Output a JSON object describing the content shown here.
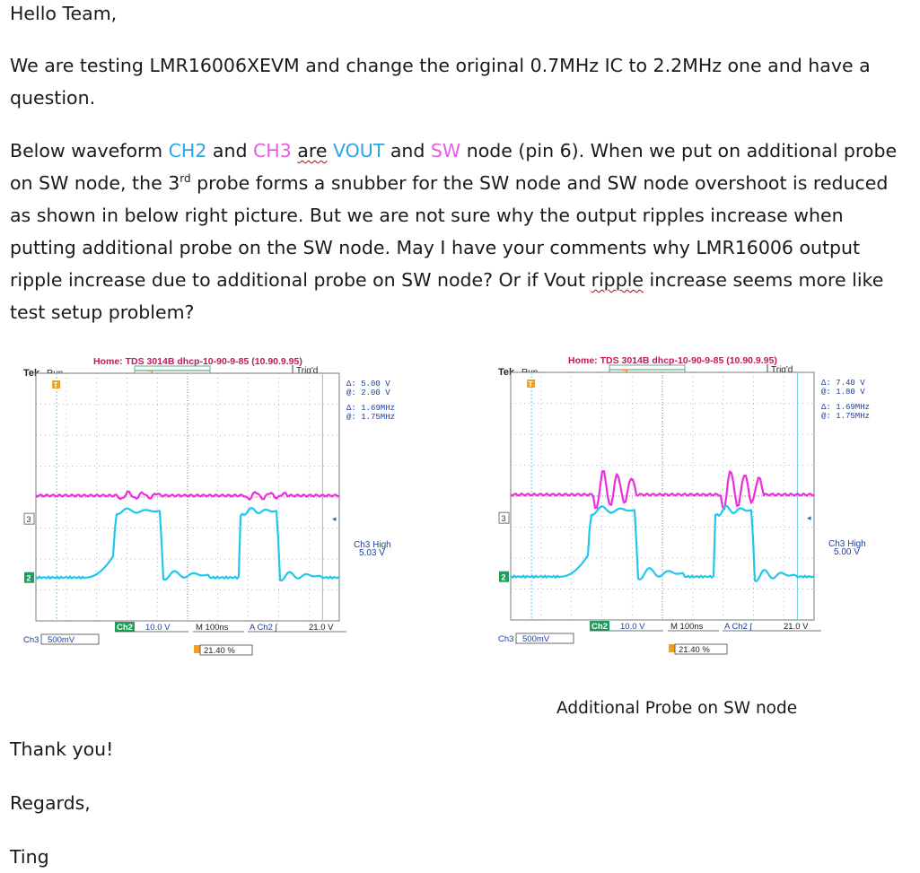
{
  "email": {
    "greeting": "Hello Team,",
    "para1_line1": "We are testing LMR16006XEVM and change the original 0.7MHz IC to 2.2MHz one and have a",
    "para1_line2": "question.",
    "p2": {
      "l1a": "Below waveform ",
      "ch2": "CH2",
      "l1b": " and ",
      "ch3": "CH3",
      "l1c": " ",
      "are": "are",
      "l1d": " ",
      "vout": "VOUT",
      "l1e": " and ",
      "sw": "SW",
      "l1f": " node (pin 6). When we put on additional probe",
      "l2a": "on SW node, the 3",
      "l2sup": "rd",
      "l2b": " probe forms a snubber for the SW node and SW node overshoot is reduced",
      "l3": "as shown in below right picture. But we are not sure why the output ripples increase when",
      "l4": "putting additional probe on the SW node. May I have your comments why LMR16006 output",
      "l5a": "ripple increase due to additional probe on SW node? Or if Vout ",
      "l5b": "ripple",
      "l5c": " increase seems more like",
      "l6": "test setup problem?"
    },
    "thanks": "Thank you!",
    "regards": "Regards,",
    "name": "Ting",
    "caption": "Additional Probe on SW node"
  },
  "scopes": [
    {
      "header": "Home:  TDS 3014B  dhcp-10-90-9-85  (10.90.9.95)",
      "trig": "Trig'd",
      "tek": "Tek",
      "run": "Run",
      "delta_v": "Δ:  5.00 V",
      "at_v": "@:  2.00 V",
      "delta_f": "Δ:  1.69MHz",
      "at_f": "@:  1.75MHz",
      "ch3_high_label": "Ch3 High",
      "ch3_high_value": "5.03 V",
      "ch2_label": "Ch2",
      "ch2_scale": "10.0 V",
      "timebase": "M  100ns",
      "trigger": "A  Ch2  ʃ",
      "trig_level": "21.0 V",
      "ch3_label": "Ch3",
      "ch3_scale": "500mV",
      "trig_pos": "21.40 %",
      "marker3": "3",
      "marker2": "2",
      "colors": {
        "cyan": "#1ec8ec",
        "magenta": "#ee2cdc",
        "grid": "#9a9a9a"
      }
    },
    {
      "header": "Home:  TDS 3014B  dhcp-10-90-9-85  (10.90.9.95)",
      "trig": "Trig'd",
      "tek": "Tek",
      "run": "Run",
      "delta_v": "Δ:  7.40 V",
      "at_v": "@:  1.80 V",
      "delta_f": "Δ:  1.69MHz",
      "at_f": "@:  1.75MHz",
      "ch3_high_label": "Ch3 High",
      "ch3_high_value": "5.00 V",
      "ch2_label": "Ch2",
      "ch2_scale": "10.0 V",
      "timebase": "M  100ns",
      "trigger": "A  Ch2  ʃ",
      "trig_level": "21.0 V",
      "ch3_label": "Ch3",
      "ch3_scale": "500mV",
      "trig_pos": "21.40 %",
      "marker3": "3",
      "marker2": "2",
      "colors": {
        "cyan": "#1ec8ec",
        "magenta": "#ee2cdc",
        "grid": "#9a9a9a"
      }
    }
  ]
}
